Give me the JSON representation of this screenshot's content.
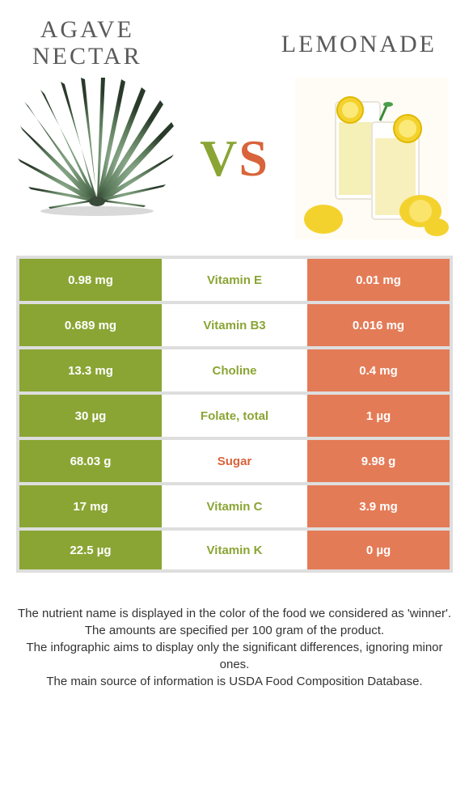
{
  "header": {
    "left_title_line1": "AGAVE",
    "left_title_line2": "NECTAR",
    "right_title": "LEMONADE"
  },
  "vs": {
    "v": "V",
    "s": "S"
  },
  "colors": {
    "left_cell": "#8aa534",
    "right_cell": "#e47b57",
    "left_text": "#8aa534",
    "right_text": "#d9633a",
    "border": "#dedede"
  },
  "rows": [
    {
      "left": "0.98 mg",
      "label": "Vitamin E",
      "right": "0.01 mg",
      "winner": "left"
    },
    {
      "left": "0.689 mg",
      "label": "Vitamin B3",
      "right": "0.016 mg",
      "winner": "left"
    },
    {
      "left": "13.3 mg",
      "label": "Choline",
      "right": "0.4 mg",
      "winner": "left"
    },
    {
      "left": "30 µg",
      "label": "Folate, total",
      "right": "1 µg",
      "winner": "left"
    },
    {
      "left": "68.03 g",
      "label": "Sugar",
      "right": "9.98 g",
      "winner": "right"
    },
    {
      "left": "17 mg",
      "label": "Vitamin C",
      "right": "3.9 mg",
      "winner": "left"
    },
    {
      "left": "22.5 µg",
      "label": "Vitamin K",
      "right": "0 µg",
      "winner": "left"
    }
  ],
  "footer": {
    "line1": "The nutrient name is displayed in the color of the food we considered as 'winner'.",
    "line2": "The amounts are specified per 100 gram of the product.",
    "line3": "The infographic aims to display only the significant differences, ignoring minor ones.",
    "line4": "The main source of information is USDA Food Composition Database."
  }
}
